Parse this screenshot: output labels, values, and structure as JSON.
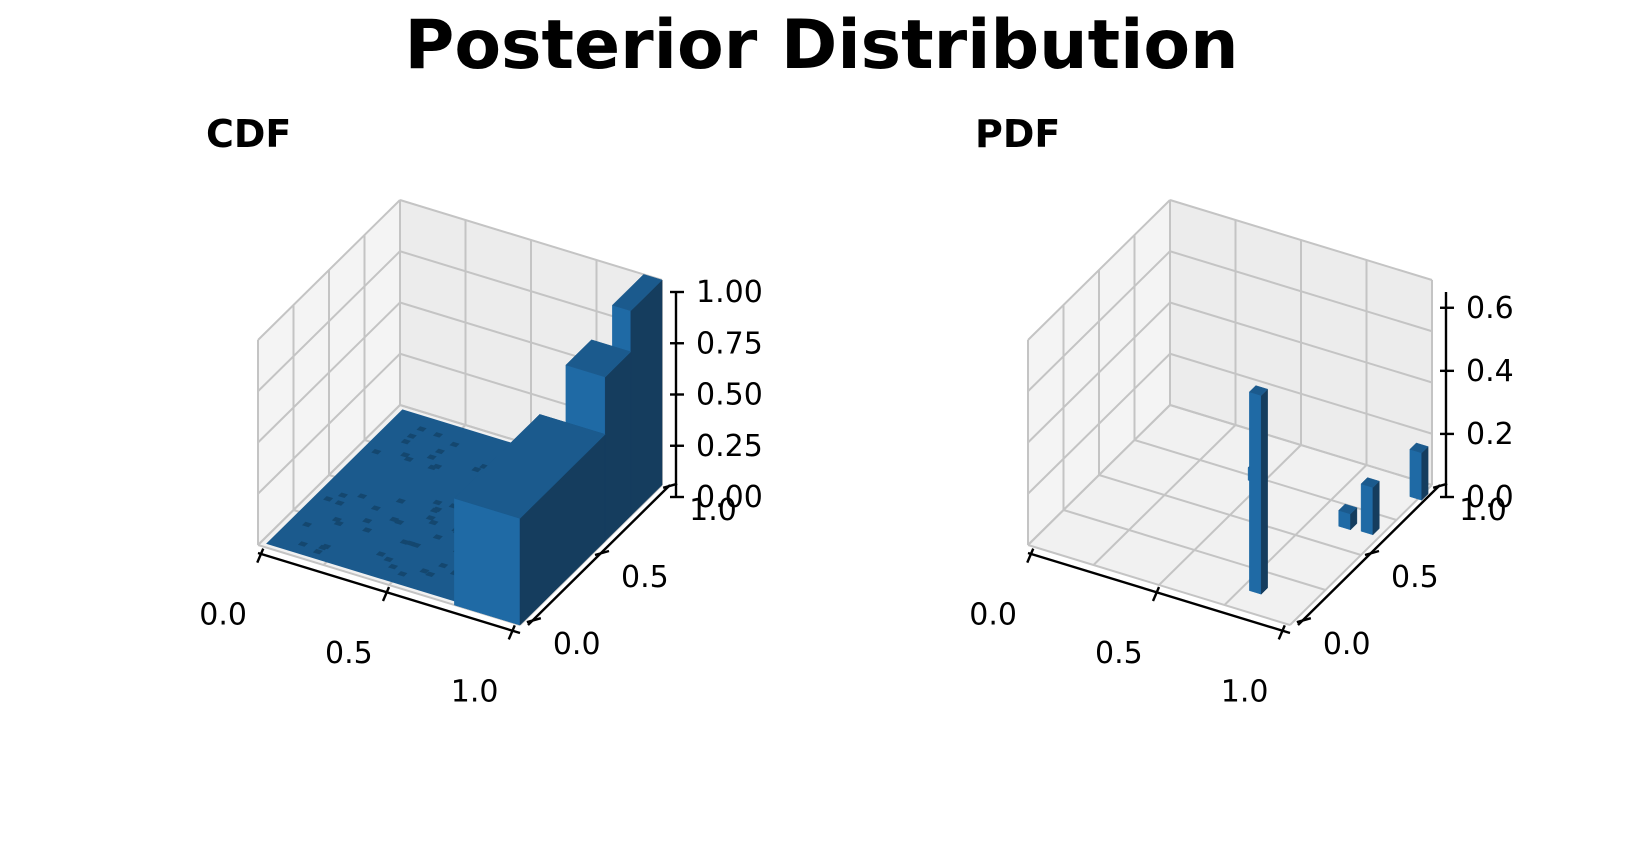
{
  "title": "Posterior Distribution",
  "chart_data": [
    {
      "type": "bar3d",
      "title": "CDF",
      "x_ticks": [
        "0.0",
        "0.5",
        "1.0"
      ],
      "y_ticks": [
        "0.0",
        "0.5",
        "1.0"
      ],
      "z_ticks": [
        "0.00",
        "0.25",
        "0.50",
        "0.75",
        "1.00"
      ],
      "xlim": [
        0,
        1
      ],
      "ylim": [
        0,
        1
      ],
      "zlim": [
        0,
        1
      ],
      "bar_color": "#1f6aa5",
      "description_values": {
        "floor": 0.0,
        "steps": [
          {
            "x_from": 0.75,
            "x_to": 1.0,
            "y_from": 0.0,
            "y_to": 0.6,
            "z": 0.52
          },
          {
            "x_from": 0.85,
            "x_to": 1.0,
            "y_from": 0.6,
            "y_to": 0.78,
            "z": 0.8
          },
          {
            "x_from": 0.93,
            "x_to": 1.0,
            "y_from": 0.78,
            "y_to": 1.0,
            "z": 1.0
          }
        ]
      }
    },
    {
      "type": "bar3d",
      "title": "PDF",
      "x_ticks": [
        "0.0",
        "0.5",
        "1.0"
      ],
      "y_ticks": [
        "0.0",
        "0.5",
        "1.0"
      ],
      "z_ticks": [
        "0.0",
        "0.2",
        "0.4",
        "0.6"
      ],
      "xlim": [
        0,
        1
      ],
      "ylim": [
        0,
        1
      ],
      "zlim": [
        0,
        0.65
      ],
      "bar_color": "#1f6aa5",
      "bars": [
        {
          "x": 0.78,
          "y": 0.12,
          "z": 0.63
        },
        {
          "x": 0.45,
          "y": 0.72,
          "z": 0.04
        },
        {
          "x": 0.85,
          "y": 0.62,
          "z": 0.05
        },
        {
          "x": 0.93,
          "y": 0.63,
          "z": 0.15
        },
        {
          "x": 0.97,
          "y": 0.9,
          "z": 0.15
        }
      ]
    }
  ]
}
